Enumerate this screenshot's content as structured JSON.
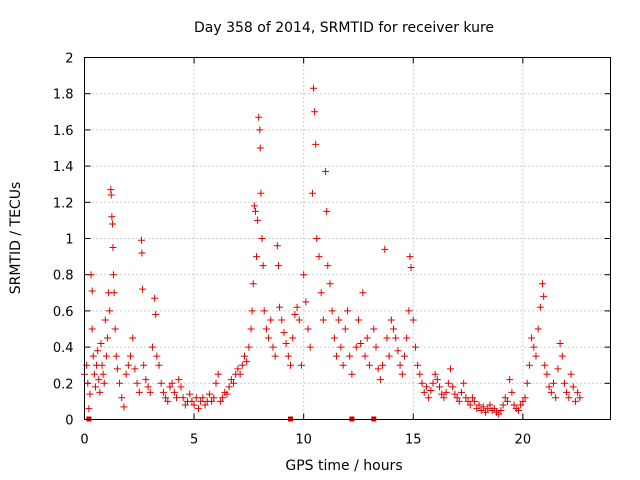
{
  "chart_data": {
    "type": "scatter",
    "title": "Day 358 of 2014, SRMTID for receiver kure",
    "xlabel": "GPS time / hours",
    "ylabel": "SRMTID / TECUs",
    "xlim": [
      0,
      24
    ],
    "ylim": [
      0,
      2
    ],
    "xticks": [
      0,
      5,
      10,
      15,
      20
    ],
    "yticks": [
      0,
      0.2,
      0.4,
      0.6,
      0.8,
      1,
      1.2,
      1.4,
      1.6,
      1.8,
      2
    ],
    "ytick_labels": [
      "0",
      "0.2",
      "0.4",
      "0.6",
      "0.8",
      "1",
      "1.2",
      "1.4",
      "1.6",
      "1.8",
      "2"
    ],
    "grid": true,
    "marker": "+",
    "color": "#e00000",
    "gap_markers_x": [
      0.2,
      9.4,
      12.2,
      13.2
    ],
    "series": [
      {
        "name": "SRMTID",
        "points": [
          [
            0.0,
            0.25
          ],
          [
            0.1,
            0.3
          ],
          [
            0.15,
            0.2
          ],
          [
            0.2,
            0.06
          ],
          [
            0.25,
            0.14
          ],
          [
            0.3,
            0.8
          ],
          [
            0.35,
            0.71
          ],
          [
            0.35,
            0.5
          ],
          [
            0.4,
            0.35
          ],
          [
            0.45,
            0.25
          ],
          [
            0.5,
            0.18
          ],
          [
            0.55,
            0.3
          ],
          [
            0.6,
            0.38
          ],
          [
            0.65,
            0.22
          ],
          [
            0.7,
            0.15
          ],
          [
            0.75,
            0.42
          ],
          [
            0.8,
            0.3
          ],
          [
            0.85,
            0.25
          ],
          [
            0.9,
            0.2
          ],
          [
            0.95,
            0.55
          ],
          [
            1.0,
            0.35
          ],
          [
            1.05,
            0.45
          ],
          [
            1.1,
            0.7
          ],
          [
            1.15,
            0.6
          ],
          [
            1.2,
            1.27
          ],
          [
            1.22,
            1.24
          ],
          [
            1.25,
            1.12
          ],
          [
            1.28,
            1.08
          ],
          [
            1.3,
            0.95
          ],
          [
            1.32,
            0.8
          ],
          [
            1.35,
            0.7
          ],
          [
            1.4,
            0.5
          ],
          [
            1.45,
            0.35
          ],
          [
            1.5,
            0.28
          ],
          [
            1.6,
            0.2
          ],
          [
            1.7,
            0.12
          ],
          [
            1.8,
            0.07
          ],
          [
            1.9,
            0.25
          ],
          [
            2.0,
            0.3
          ],
          [
            2.1,
            0.35
          ],
          [
            2.2,
            0.45
          ],
          [
            2.3,
            0.28
          ],
          [
            2.4,
            0.2
          ],
          [
            2.5,
            0.15
          ],
          [
            2.6,
            0.99
          ],
          [
            2.62,
            0.92
          ],
          [
            2.65,
            0.72
          ],
          [
            2.7,
            0.3
          ],
          [
            2.8,
            0.22
          ],
          [
            2.9,
            0.18
          ],
          [
            3.0,
            0.15
          ],
          [
            3.1,
            0.4
          ],
          [
            3.2,
            0.67
          ],
          [
            3.25,
            0.58
          ],
          [
            3.3,
            0.35
          ],
          [
            3.4,
            0.3
          ],
          [
            3.5,
            0.2
          ],
          [
            3.6,
            0.15
          ],
          [
            3.7,
            0.12
          ],
          [
            3.8,
            0.1
          ],
          [
            3.9,
            0.18
          ],
          [
            4.0,
            0.2
          ],
          [
            4.1,
            0.15
          ],
          [
            4.2,
            0.12
          ],
          [
            4.3,
            0.22
          ],
          [
            4.4,
            0.18
          ],
          [
            4.5,
            0.12
          ],
          [
            4.6,
            0.08
          ],
          [
            4.7,
            0.1
          ],
          [
            4.8,
            0.14
          ],
          [
            4.9,
            0.1
          ],
          [
            5.0,
            0.08
          ],
          [
            5.1,
            0.12
          ],
          [
            5.2,
            0.06
          ],
          [
            5.3,
            0.1
          ],
          [
            5.4,
            0.12
          ],
          [
            5.5,
            0.08
          ],
          [
            5.6,
            0.1
          ],
          [
            5.7,
            0.14
          ],
          [
            5.8,
            0.1
          ],
          [
            5.9,
            0.12
          ],
          [
            6.0,
            0.2
          ],
          [
            6.1,
            0.25
          ],
          [
            6.2,
            0.1
          ],
          [
            6.3,
            0.12
          ],
          [
            6.4,
            0.15
          ],
          [
            6.5,
            0.14
          ],
          [
            6.6,
            0.18
          ],
          [
            6.7,
            0.22
          ],
          [
            6.8,
            0.2
          ],
          [
            6.9,
            0.25
          ],
          [
            7.0,
            0.28
          ],
          [
            7.1,
            0.25
          ],
          [
            7.2,
            0.3
          ],
          [
            7.3,
            0.35
          ],
          [
            7.4,
            0.32
          ],
          [
            7.5,
            0.4
          ],
          [
            7.6,
            0.5
          ],
          [
            7.65,
            0.6
          ],
          [
            7.7,
            0.75
          ],
          [
            7.75,
            1.18
          ],
          [
            7.8,
            1.15
          ],
          [
            7.85,
            0.9
          ],
          [
            7.9,
            1.1
          ],
          [
            7.95,
            1.67
          ],
          [
            8.0,
            1.6
          ],
          [
            8.02,
            1.5
          ],
          [
            8.05,
            1.25
          ],
          [
            8.1,
            1.0
          ],
          [
            8.15,
            0.85
          ],
          [
            8.2,
            0.6
          ],
          [
            8.3,
            0.5
          ],
          [
            8.4,
            0.45
          ],
          [
            8.5,
            0.55
          ],
          [
            8.6,
            0.4
          ],
          [
            8.7,
            0.35
          ],
          [
            8.8,
            0.96
          ],
          [
            8.85,
            0.85
          ],
          [
            8.9,
            0.62
          ],
          [
            9.0,
            0.55
          ],
          [
            9.1,
            0.48
          ],
          [
            9.2,
            0.42
          ],
          [
            9.3,
            0.35
          ],
          [
            9.4,
            0.3
          ],
          [
            9.5,
            0.45
          ],
          [
            9.6,
            0.58
          ],
          [
            9.7,
            0.62
          ],
          [
            9.8,
            0.55
          ],
          [
            9.9,
            0.3
          ],
          [
            10.0,
            0.8
          ],
          [
            10.1,
            0.65
          ],
          [
            10.2,
            0.5
          ],
          [
            10.3,
            0.4
          ],
          [
            10.4,
            1.25
          ],
          [
            10.45,
            1.83
          ],
          [
            10.5,
            1.7
          ],
          [
            10.55,
            1.52
          ],
          [
            10.6,
            1.0
          ],
          [
            10.7,
            0.9
          ],
          [
            10.8,
            0.7
          ],
          [
            10.9,
            0.55
          ],
          [
            11.0,
            1.37
          ],
          [
            11.05,
            1.15
          ],
          [
            11.1,
            0.85
          ],
          [
            11.2,
            0.75
          ],
          [
            11.3,
            0.6
          ],
          [
            11.4,
            0.45
          ],
          [
            11.5,
            0.35
          ],
          [
            11.6,
            0.55
          ],
          [
            11.7,
            0.4
          ],
          [
            11.8,
            0.3
          ],
          [
            11.9,
            0.5
          ],
          [
            12.0,
            0.6
          ],
          [
            12.1,
            0.35
          ],
          [
            12.2,
            0.25
          ],
          [
            12.4,
            0.4
          ],
          [
            12.5,
            0.55
          ],
          [
            12.6,
            0.42
          ],
          [
            12.7,
            0.7
          ],
          [
            12.8,
            0.35
          ],
          [
            12.9,
            0.45
          ],
          [
            13.0,
            0.3
          ],
          [
            13.2,
            0.5
          ],
          [
            13.3,
            0.4
          ],
          [
            13.4,
            0.28
          ],
          [
            13.5,
            0.22
          ],
          [
            13.6,
            0.3
          ],
          [
            13.7,
            0.94
          ],
          [
            13.8,
            0.45
          ],
          [
            13.9,
            0.35
          ],
          [
            14.0,
            0.55
          ],
          [
            14.1,
            0.5
          ],
          [
            14.2,
            0.45
          ],
          [
            14.3,
            0.38
          ],
          [
            14.4,
            0.3
          ],
          [
            14.5,
            0.25
          ],
          [
            14.6,
            0.35
          ],
          [
            14.7,
            0.45
          ],
          [
            14.8,
            0.6
          ],
          [
            14.85,
            0.9
          ],
          [
            14.9,
            0.84
          ],
          [
            15.0,
            0.55
          ],
          [
            15.1,
            0.4
          ],
          [
            15.2,
            0.3
          ],
          [
            15.3,
            0.25
          ],
          [
            15.4,
            0.2
          ],
          [
            15.5,
            0.15
          ],
          [
            15.6,
            0.18
          ],
          [
            15.7,
            0.12
          ],
          [
            15.8,
            0.16
          ],
          [
            15.9,
            0.2
          ],
          [
            16.0,
            0.25
          ],
          [
            16.1,
            0.22
          ],
          [
            16.2,
            0.18
          ],
          [
            16.3,
            0.14
          ],
          [
            16.4,
            0.12
          ],
          [
            16.5,
            0.15
          ],
          [
            16.6,
            0.2
          ],
          [
            16.7,
            0.28
          ],
          [
            16.8,
            0.18
          ],
          [
            16.9,
            0.14
          ],
          [
            17.0,
            0.12
          ],
          [
            17.1,
            0.1
          ],
          [
            17.2,
            0.15
          ],
          [
            17.3,
            0.2
          ],
          [
            17.4,
            0.12
          ],
          [
            17.5,
            0.1
          ],
          [
            17.6,
            0.08
          ],
          [
            17.7,
            0.12
          ],
          [
            17.8,
            0.1
          ],
          [
            17.9,
            0.06
          ],
          [
            18.0,
            0.08
          ],
          [
            18.1,
            0.05
          ],
          [
            18.2,
            0.07
          ],
          [
            18.3,
            0.04
          ],
          [
            18.4,
            0.06
          ],
          [
            18.5,
            0.08
          ],
          [
            18.6,
            0.05
          ],
          [
            18.7,
            0.06
          ],
          [
            18.8,
            0.04
          ],
          [
            18.9,
            0.03
          ],
          [
            19.0,
            0.05
          ],
          [
            19.1,
            0.08
          ],
          [
            19.2,
            0.12
          ],
          [
            19.3,
            0.1
          ],
          [
            19.4,
            0.22
          ],
          [
            19.5,
            0.15
          ],
          [
            19.6,
            0.08
          ],
          [
            19.7,
            0.06
          ],
          [
            19.8,
            0.05
          ],
          [
            19.9,
            0.08
          ],
          [
            20.0,
            0.1
          ],
          [
            20.1,
            0.12
          ],
          [
            20.2,
            0.2
          ],
          [
            20.3,
            0.3
          ],
          [
            20.4,
            0.45
          ],
          [
            20.5,
            0.4
          ],
          [
            20.6,
            0.35
          ],
          [
            20.7,
            0.5
          ],
          [
            20.8,
            0.62
          ],
          [
            20.9,
            0.75
          ],
          [
            20.95,
            0.68
          ],
          [
            21.0,
            0.3
          ],
          [
            21.1,
            0.25
          ],
          [
            21.2,
            0.18
          ],
          [
            21.3,
            0.15
          ],
          [
            21.4,
            0.2
          ],
          [
            21.5,
            0.12
          ],
          [
            21.6,
            0.28
          ],
          [
            21.7,
            0.42
          ],
          [
            21.8,
            0.35
          ],
          [
            21.9,
            0.2
          ],
          [
            22.0,
            0.15
          ],
          [
            22.1,
            0.12
          ],
          [
            22.2,
            0.25
          ],
          [
            22.3,
            0.18
          ],
          [
            22.4,
            0.1
          ],
          [
            22.5,
            0.15
          ],
          [
            22.6,
            0.12
          ]
        ]
      }
    ]
  }
}
